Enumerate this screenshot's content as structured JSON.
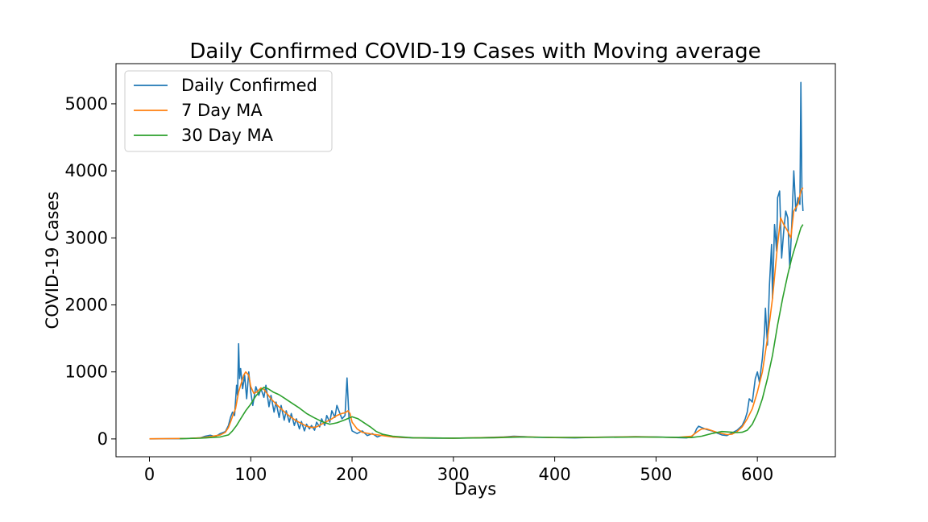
{
  "chart_data": {
    "type": "line",
    "title": "Daily Confirmed COVID-19 Cases with Moving average",
    "xlabel": "Days",
    "ylabel": "COVID-19 Cases",
    "xlim": [
      -33,
      677
    ],
    "ylim": [
      -266,
      5600
    ],
    "xticks": [
      0,
      100,
      200,
      300,
      400,
      500,
      600
    ],
    "yticks": [
      0,
      1000,
      2000,
      3000,
      4000,
      5000
    ],
    "grid": false,
    "legend_position": "top-left",
    "series": [
      {
        "name": "Daily Confirmed",
        "color": "#1f77b4",
        "points": [
          [
            0,
            1
          ],
          [
            10,
            2
          ],
          [
            20,
            5
          ],
          [
            30,
            3
          ],
          [
            40,
            8
          ],
          [
            50,
            15
          ],
          [
            55,
            40
          ],
          [
            60,
            55
          ],
          [
            65,
            35
          ],
          [
            70,
            80
          ],
          [
            75,
            110
          ],
          [
            78,
            200
          ],
          [
            80,
            320
          ],
          [
            82,
            400
          ],
          [
            84,
            350
          ],
          [
            86,
            800
          ],
          [
            87,
            650
          ],
          [
            88,
            1420
          ],
          [
            89,
            900
          ],
          [
            90,
            1050
          ],
          [
            92,
            750
          ],
          [
            94,
            950
          ],
          [
            96,
            600
          ],
          [
            98,
            1000
          ],
          [
            100,
            700
          ],
          [
            102,
            500
          ],
          [
            105,
            780
          ],
          [
            108,
            650
          ],
          [
            110,
            750
          ],
          [
            113,
            620
          ],
          [
            115,
            800
          ],
          [
            118,
            480
          ],
          [
            120,
            650
          ],
          [
            123,
            400
          ],
          [
            125,
            550
          ],
          [
            128,
            320
          ],
          [
            130,
            500
          ],
          [
            133,
            280
          ],
          [
            135,
            420
          ],
          [
            138,
            250
          ],
          [
            140,
            380
          ],
          [
            143,
            200
          ],
          [
            145,
            300
          ],
          [
            148,
            150
          ],
          [
            150,
            260
          ],
          [
            153,
            120
          ],
          [
            155,
            220
          ],
          [
            158,
            150
          ],
          [
            160,
            200
          ],
          [
            163,
            130
          ],
          [
            165,
            250
          ],
          [
            168,
            180
          ],
          [
            170,
            300
          ],
          [
            173,
            200
          ],
          [
            175,
            350
          ],
          [
            178,
            250
          ],
          [
            180,
            420
          ],
          [
            183,
            320
          ],
          [
            185,
            500
          ],
          [
            188,
            380
          ],
          [
            190,
            300
          ],
          [
            193,
            350
          ],
          [
            195,
            910
          ],
          [
            197,
            300
          ],
          [
            200,
            120
          ],
          [
            205,
            80
          ],
          [
            210,
            120
          ],
          [
            215,
            50
          ],
          [
            220,
            80
          ],
          [
            225,
            30
          ],
          [
            230,
            60
          ],
          [
            240,
            30
          ],
          [
            250,
            20
          ],
          [
            260,
            15
          ],
          [
            280,
            10
          ],
          [
            300,
            12
          ],
          [
            320,
            15
          ],
          [
            340,
            25
          ],
          [
            350,
            30
          ],
          [
            360,
            40
          ],
          [
            370,
            35
          ],
          [
            380,
            25
          ],
          [
            400,
            20
          ],
          [
            420,
            15
          ],
          [
            440,
            25
          ],
          [
            460,
            30
          ],
          [
            480,
            35
          ],
          [
            500,
            30
          ],
          [
            520,
            20
          ],
          [
            530,
            15
          ],
          [
            535,
            30
          ],
          [
            538,
            80
          ],
          [
            540,
            150
          ],
          [
            542,
            190
          ],
          [
            545,
            170
          ],
          [
            550,
            140
          ],
          [
            555,
            120
          ],
          [
            560,
            90
          ],
          [
            565,
            60
          ],
          [
            570,
            50
          ],
          [
            575,
            90
          ],
          [
            580,
            130
          ],
          [
            585,
            200
          ],
          [
            588,
            300
          ],
          [
            590,
            400
          ],
          [
            592,
            600
          ],
          [
            595,
            550
          ],
          [
            598,
            900
          ],
          [
            600,
            1000
          ],
          [
            602,
            850
          ],
          [
            605,
            1200
          ],
          [
            607,
            1600
          ],
          [
            608,
            1950
          ],
          [
            610,
            1400
          ],
          [
            612,
            2300
          ],
          [
            614,
            2900
          ],
          [
            615,
            2100
          ],
          [
            617,
            3200
          ],
          [
            619,
            2800
          ],
          [
            620,
            3600
          ],
          [
            622,
            3700
          ],
          [
            624,
            2700
          ],
          [
            626,
            3100
          ],
          [
            628,
            3400
          ],
          [
            630,
            3300
          ],
          [
            632,
            2550
          ],
          [
            634,
            3200
          ],
          [
            636,
            4000
          ],
          [
            638,
            3400
          ],
          [
            640,
            3600
          ],
          [
            642,
            3500
          ],
          [
            643,
            5320
          ],
          [
            644,
            3700
          ],
          [
            645,
            3400
          ]
        ]
      },
      {
        "name": "7 Day MA",
        "color": "#ff7f0e",
        "points": [
          [
            0,
            2
          ],
          [
            20,
            4
          ],
          [
            40,
            8
          ],
          [
            50,
            15
          ],
          [
            60,
            35
          ],
          [
            70,
            60
          ],
          [
            75,
            100
          ],
          [
            78,
            170
          ],
          [
            80,
            250
          ],
          [
            83,
            380
          ],
          [
            85,
            450
          ],
          [
            88,
            700
          ],
          [
            90,
            800
          ],
          [
            93,
            950
          ],
          [
            95,
            1000
          ],
          [
            98,
            950
          ],
          [
            100,
            780
          ],
          [
            103,
            680
          ],
          [
            106,
            700
          ],
          [
            110,
            760
          ],
          [
            113,
            740
          ],
          [
            116,
            680
          ],
          [
            120,
            600
          ],
          [
            125,
            520
          ],
          [
            130,
            450
          ],
          [
            135,
            380
          ],
          [
            140,
            320
          ],
          [
            145,
            270
          ],
          [
            150,
            230
          ],
          [
            155,
            190
          ],
          [
            160,
            170
          ],
          [
            165,
            180
          ],
          [
            170,
            220
          ],
          [
            175,
            260
          ],
          [
            180,
            300
          ],
          [
            185,
            350
          ],
          [
            190,
            380
          ],
          [
            193,
            390
          ],
          [
            196,
            420
          ],
          [
            198,
            380
          ],
          [
            200,
            250
          ],
          [
            205,
            150
          ],
          [
            210,
            100
          ],
          [
            220,
            70
          ],
          [
            230,
            50
          ],
          [
            240,
            30
          ],
          [
            260,
            18
          ],
          [
            300,
            12
          ],
          [
            340,
            22
          ],
          [
            360,
            32
          ],
          [
            380,
            28
          ],
          [
            400,
            20
          ],
          [
            440,
            25
          ],
          [
            480,
            32
          ],
          [
            520,
            22
          ],
          [
            535,
            40
          ],
          [
            540,
            100
          ],
          [
            545,
            150
          ],
          [
            550,
            150
          ],
          [
            560,
            100
          ],
          [
            570,
            65
          ],
          [
            575,
            70
          ],
          [
            580,
            110
          ],
          [
            585,
            180
          ],
          [
            590,
            300
          ],
          [
            595,
            450
          ],
          [
            600,
            700
          ],
          [
            605,
            1000
          ],
          [
            610,
            1500
          ],
          [
            615,
            2100
          ],
          [
            620,
            2900
          ],
          [
            623,
            3300
          ],
          [
            626,
            3200
          ],
          [
            630,
            3100
          ],
          [
            633,
            3000
          ],
          [
            636,
            3400
          ],
          [
            640,
            3500
          ],
          [
            643,
            3700
          ],
          [
            645,
            3750
          ]
        ]
      },
      {
        "name": "30 Day MA",
        "color": "#2ca02c",
        "points": [
          [
            30,
            3
          ],
          [
            50,
            10
          ],
          [
            60,
            20
          ],
          [
            70,
            30
          ],
          [
            78,
            60
          ],
          [
            82,
            120
          ],
          [
            86,
            200
          ],
          [
            90,
            300
          ],
          [
            95,
            420
          ],
          [
            100,
            520
          ],
          [
            105,
            640
          ],
          [
            110,
            730
          ],
          [
            113,
            770
          ],
          [
            117,
            750
          ],
          [
            122,
            700
          ],
          [
            128,
            660
          ],
          [
            133,
            610
          ],
          [
            140,
            540
          ],
          [
            148,
            460
          ],
          [
            155,
            380
          ],
          [
            162,
            320
          ],
          [
            170,
            260
          ],
          [
            178,
            220
          ],
          [
            185,
            240
          ],
          [
            192,
            280
          ],
          [
            200,
            330
          ],
          [
            206,
            300
          ],
          [
            212,
            240
          ],
          [
            218,
            180
          ],
          [
            224,
            110
          ],
          [
            230,
            70
          ],
          [
            240,
            40
          ],
          [
            260,
            18
          ],
          [
            300,
            12
          ],
          [
            340,
            18
          ],
          [
            370,
            28
          ],
          [
            400,
            22
          ],
          [
            440,
            22
          ],
          [
            480,
            28
          ],
          [
            520,
            25
          ],
          [
            535,
            20
          ],
          [
            545,
            40
          ],
          [
            555,
            80
          ],
          [
            565,
            110
          ],
          [
            575,
            100
          ],
          [
            580,
            95
          ],
          [
            585,
            100
          ],
          [
            590,
            130
          ],
          [
            595,
            220
          ],
          [
            600,
            380
          ],
          [
            605,
            600
          ],
          [
            610,
            900
          ],
          [
            615,
            1250
          ],
          [
            620,
            1700
          ],
          [
            625,
            2100
          ],
          [
            630,
            2450
          ],
          [
            634,
            2700
          ],
          [
            638,
            2900
          ],
          [
            641,
            3050
          ],
          [
            643,
            3150
          ],
          [
            645,
            3200
          ]
        ]
      }
    ]
  }
}
